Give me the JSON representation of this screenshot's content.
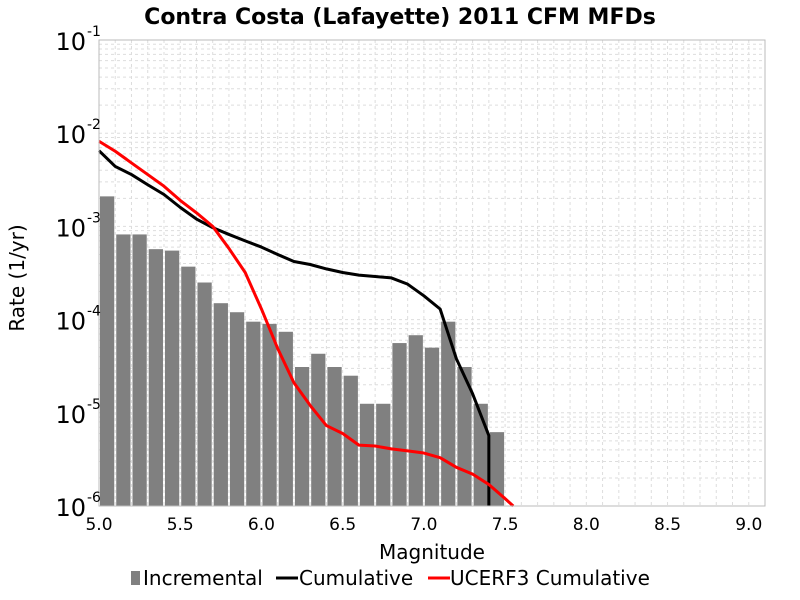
{
  "chart_data": {
    "type": "bar",
    "title": "Contra Costa (Lafayette) 2011 CFM MFDs",
    "xlabel": "Magnitude",
    "ylabel": "Rate (1/yr)",
    "xlim": [
      5.0,
      9.1
    ],
    "ylim": [
      1e-06,
      0.1
    ],
    "yscale": "log",
    "grid": true,
    "legend_position": "bottom",
    "x_ticks": [
      "5.0",
      "5.5",
      "6.0",
      "6.5",
      "7.0",
      "7.5",
      "8.0",
      "8.5",
      "9.0"
    ],
    "y_ticks": [
      {
        "base": "10",
        "exp": "-6",
        "value": 1e-06
      },
      {
        "base": "10",
        "exp": "-5",
        "value": 1e-05
      },
      {
        "base": "10",
        "exp": "-4",
        "value": 0.0001
      },
      {
        "base": "10",
        "exp": "-3",
        "value": 0.001
      },
      {
        "base": "10",
        "exp": "-2",
        "value": 0.01
      },
      {
        "base": "10",
        "exp": "-1",
        "value": 0.1
      }
    ],
    "series": [
      {
        "name": "Incremental",
        "kind": "bar",
        "color": "#808080",
        "bin_width": 0.1,
        "x": [
          5.05,
          5.15,
          5.25,
          5.35,
          5.45,
          5.55,
          5.65,
          5.75,
          5.85,
          5.95,
          6.05,
          6.15,
          6.25,
          6.35,
          6.45,
          6.55,
          6.65,
          6.75,
          6.85,
          6.95,
          7.05,
          7.15,
          7.25,
          7.35,
          7.45
        ],
        "values": [
          0.0021,
          0.00082,
          0.00082,
          0.00057,
          0.00055,
          0.00037,
          0.00025,
          0.00015,
          0.00012,
          9.5e-05,
          9e-05,
          7.4e-05,
          3.1e-05,
          4.3e-05,
          3.1e-05,
          2.5e-05,
          1.25e-05,
          1.25e-05,
          5.6e-05,
          6.8e-05,
          5e-05,
          9.5e-05,
          3.1e-05,
          1.25e-05,
          6.2e-06
        ]
      },
      {
        "name": "Cumulative",
        "kind": "line",
        "color": "#000000",
        "x": [
          5.0,
          5.1,
          5.2,
          5.3,
          5.4,
          5.5,
          5.6,
          5.7,
          5.8,
          5.9,
          6.0,
          6.1,
          6.2,
          6.3,
          6.4,
          6.5,
          6.6,
          6.7,
          6.8,
          6.9,
          7.0,
          7.1,
          7.2,
          7.3,
          7.4,
          7.4
        ],
        "values": [
          0.0065,
          0.0044,
          0.0036,
          0.0028,
          0.0022,
          0.0016,
          0.0012,
          0.00097,
          0.00082,
          0.0007,
          0.0006,
          0.0005,
          0.00042,
          0.00039,
          0.00035,
          0.00032,
          0.0003,
          0.00029,
          0.00028,
          0.00024,
          0.00018,
          0.00013,
          3.8e-05,
          1.6e-05,
          5.7e-06,
          1e-06
        ]
      },
      {
        "name": "UCERF3 Cumulative",
        "kind": "line",
        "color": "#ff0000",
        "x": [
          5.0,
          5.1,
          5.2,
          5.3,
          5.4,
          5.5,
          5.6,
          5.7,
          5.8,
          5.9,
          6.0,
          6.1,
          6.2,
          6.3,
          6.4,
          6.5,
          6.6,
          6.7,
          6.8,
          6.9,
          7.0,
          7.1,
          7.2,
          7.3,
          7.4,
          7.5,
          7.55
        ],
        "values": [
          0.0082,
          0.0064,
          0.0048,
          0.0036,
          0.0027,
          0.0019,
          0.0014,
          0.001,
          0.00058,
          0.00032,
          0.00013,
          4.9e-05,
          2.1e-05,
          1.2e-05,
          7.3e-06,
          6e-06,
          4.5e-06,
          4.4e-06,
          4.1e-06,
          3.9e-06,
          3.7e-06,
          3.3e-06,
          2.6e-06,
          2.2e-06,
          1.7e-06,
          1.2e-06,
          1e-06
        ]
      }
    ]
  }
}
